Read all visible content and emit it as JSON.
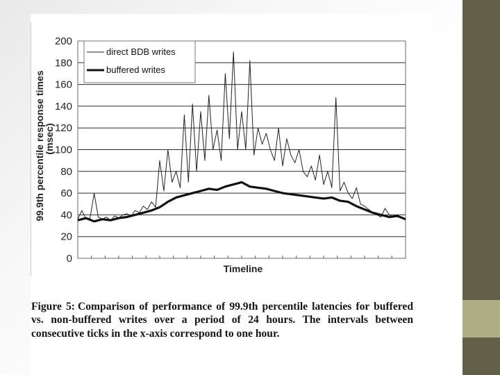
{
  "slide": {
    "background": "#f4f4f4",
    "band_color": "#63604a",
    "band_accent_color": "#aeae85"
  },
  "chart_data": {
    "type": "line",
    "xlabel": "Timeline",
    "ylabel_line1": "99.9th percentile response times",
    "ylabel_line2": "(msec)",
    "ylim": [
      0,
      200
    ],
    "yticks": [
      "0",
      "20",
      "40",
      "60",
      "80",
      "100",
      "120",
      "140",
      "160",
      "180",
      "200"
    ],
    "x_ticks": 24,
    "xlim": [
      0,
      24
    ],
    "grid": "horizontal",
    "legend_position": "top-left",
    "series": [
      {
        "name": "direct BDB writes",
        "style": "thin",
        "color": "#222222",
        "x": [
          0,
          0.3,
          0.6,
          0.9,
          1.2,
          1.5,
          1.8,
          2.1,
          2.4,
          2.7,
          3.0,
          3.3,
          3.6,
          3.9,
          4.2,
          4.5,
          4.8,
          5.1,
          5.4,
          5.7,
          6.0,
          6.3,
          6.6,
          6.9,
          7.2,
          7.5,
          7.8,
          8.1,
          8.4,
          8.7,
          9.0,
          9.3,
          9.6,
          9.9,
          10.2,
          10.5,
          10.8,
          11.1,
          11.4,
          11.7,
          12.0,
          12.3,
          12.6,
          12.9,
          13.2,
          13.5,
          13.8,
          14.1,
          14.4,
          14.7,
          15.0,
          15.3,
          15.6,
          15.9,
          16.2,
          16.5,
          16.8,
          17.1,
          17.4,
          17.7,
          18.0,
          18.3,
          18.6,
          18.9,
          19.2,
          19.5,
          19.8,
          20.1,
          20.4,
          20.7,
          21.0,
          21.3,
          21.6,
          21.9,
          22.2,
          22.5,
          22.8,
          23.1,
          23.4,
          23.7,
          24.0
        ],
        "values": [
          36,
          44,
          36,
          37,
          60,
          38,
          36,
          38,
          35,
          39,
          37,
          40,
          41,
          39,
          44,
          42,
          48,
          45,
          52,
          47,
          90,
          62,
          100,
          70,
          80,
          65,
          132,
          70,
          142,
          80,
          135,
          90,
          150,
          100,
          118,
          90,
          170,
          110,
          190,
          100,
          135,
          100,
          182,
          95,
          120,
          105,
          115,
          100,
          90,
          120,
          85,
          110,
          95,
          88,
          100,
          80,
          75,
          85,
          72,
          95,
          68,
          80,
          65,
          148,
          62,
          70,
          60,
          55,
          65,
          50,
          48,
          45,
          42,
          40,
          38,
          46,
          40,
          38,
          39,
          37,
          36
        ]
      },
      {
        "name": "buffered writes",
        "style": "thick",
        "color": "#111111",
        "x": [
          0,
          0.6,
          1.2,
          1.8,
          2.4,
          3.0,
          3.6,
          4.2,
          4.8,
          5.4,
          6.0,
          6.6,
          7.2,
          7.8,
          8.4,
          9.0,
          9.6,
          10.2,
          10.8,
          11.4,
          12.0,
          12.6,
          13.2,
          13.8,
          14.4,
          15.0,
          15.6,
          16.2,
          16.8,
          17.4,
          18.0,
          18.6,
          19.2,
          19.8,
          20.4,
          21.0,
          21.6,
          22.2,
          22.8,
          23.4,
          24.0
        ],
        "values": [
          35,
          37,
          34,
          36,
          35,
          37,
          38,
          40,
          42,
          44,
          47,
          52,
          56,
          58,
          60,
          62,
          64,
          63,
          66,
          68,
          70,
          66,
          65,
          64,
          62,
          60,
          59,
          58,
          57,
          56,
          55,
          56,
          53,
          52,
          48,
          45,
          42,
          40,
          38,
          39,
          36
        ]
      }
    ]
  },
  "caption": {
    "label": "Figure 5:",
    "text": "Comparison of performance of 99.9th percentile latencies for buffered vs. non-buffered writes over a period of 24 hours. The intervals between consecutive ticks in the x-axis correspond to one hour."
  }
}
